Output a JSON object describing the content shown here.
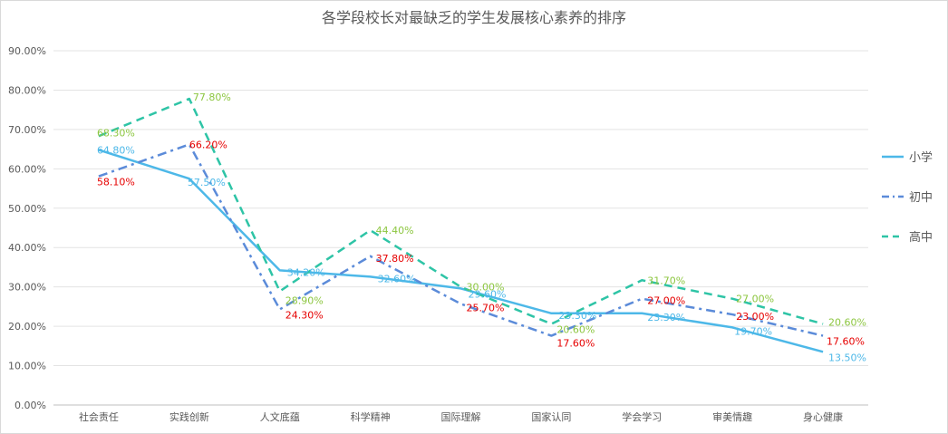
{
  "chart_data": {
    "type": "line",
    "title": "各学段校长对最缺乏的学生发展核心素养的排序",
    "xlabel": "",
    "ylabel": "",
    "categories": [
      "社会责任",
      "实践创新",
      "人文底蕴",
      "科学精神",
      "国际理解",
      "国家认同",
      "学会学习",
      "审美情趣",
      "身心健康"
    ],
    "ylim": [
      0,
      90
    ],
    "yticks": [
      "0.00%",
      "10.00%",
      "20.00%",
      "30.00%",
      "40.00%",
      "50.00%",
      "60.00%",
      "70.00%",
      "80.00%",
      "90.00%"
    ],
    "grid": true,
    "legend_position": "right",
    "series": [
      {
        "name": "小学",
        "values": [
          64.8,
          57.5,
          34.2,
          32.6,
          29.6,
          23.3,
          23.3,
          19.7,
          13.5
        ],
        "labels": [
          "64.80%",
          "57.50%",
          "34.20%",
          "32.60%",
          "29.60%",
          "23.30%",
          "23.30%",
          "19.70%",
          "13.50%"
        ],
        "color": "#4db8e8",
        "label_color": "#4db8e8",
        "dash": "solid"
      },
      {
        "name": "初中",
        "values": [
          58.1,
          66.2,
          24.3,
          37.8,
          25.7,
          17.6,
          27.0,
          23.0,
          17.6
        ],
        "labels": [
          "58.10%",
          "66.20%",
          "24.30%",
          "37.80%",
          "25.70%",
          "17.60%",
          "27.00%",
          "23.00%",
          "17.60%"
        ],
        "color": "#5b8bd9",
        "label_color": "#e60000",
        "dash": "dashdot"
      },
      {
        "name": "高中",
        "values": [
          68.3,
          77.8,
          28.9,
          44.4,
          30.0,
          20.6,
          31.7,
          27.0,
          20.6
        ],
        "labels": [
          "68.30%",
          "77.80%",
          "28.90%",
          "44.40%",
          "30.00%",
          "20.60%",
          "31.70%",
          "27.00%",
          "20.60%"
        ],
        "color": "#2ec4a6",
        "label_color": "#8cc63f",
        "dash": "dashed"
      }
    ]
  }
}
